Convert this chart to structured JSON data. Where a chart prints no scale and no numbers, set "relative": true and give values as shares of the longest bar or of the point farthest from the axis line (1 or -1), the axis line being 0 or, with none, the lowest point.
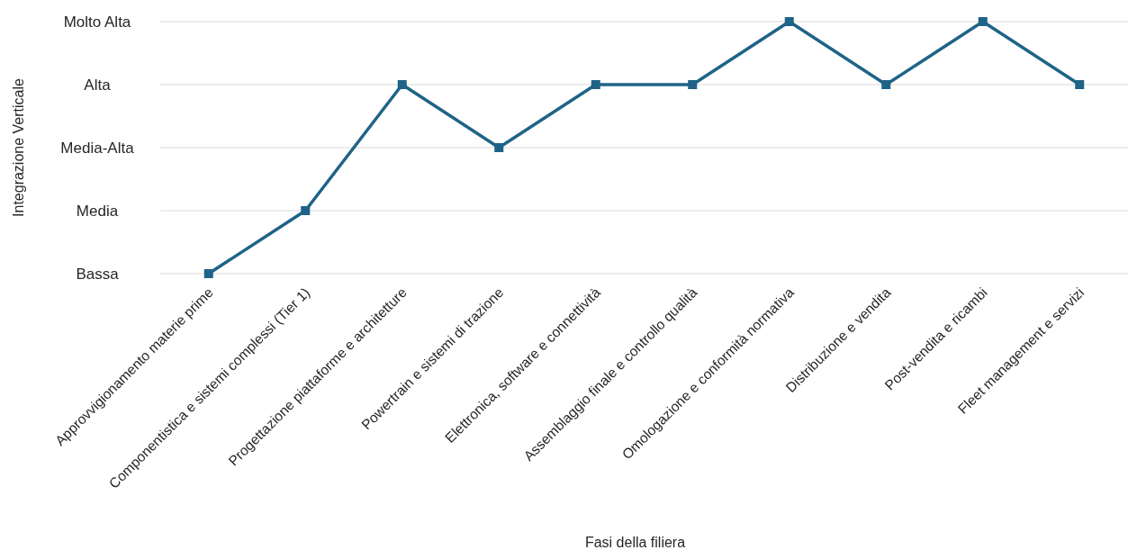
{
  "chart_data": {
    "type": "line",
    "xlabel": "Fasi della filiera",
    "ylabel": "Integrazione Verticale",
    "categories": [
      "Approvvigionamento materie prime",
      "Componentistica e sistemi complessi (Tier 1)",
      "Progettazione piattaforme e architetture",
      "Powertrain e sistemi di trazione",
      "Elettronica, software e connettività",
      "Assemblaggio finale e controllo qualità",
      "Omologazione e conformità normativa",
      "Distribuzione e vendita",
      "Post-vendita e ricambi",
      "Fleet management e servizi"
    ],
    "y_categories": [
      "Molto Alta",
      "Alta",
      "Media-Alta",
      "Media",
      "Bassa"
    ],
    "relative": true,
    "series": [
      {
        "color": "#1f6387",
        "values": [
          0,
          0.25,
          0.75,
          0.5,
          0.75,
          0.75,
          1,
          0.75,
          1,
          0.75
        ]
      }
    ],
    "grid": "y",
    "marker": "square",
    "line_style": "solid"
  }
}
